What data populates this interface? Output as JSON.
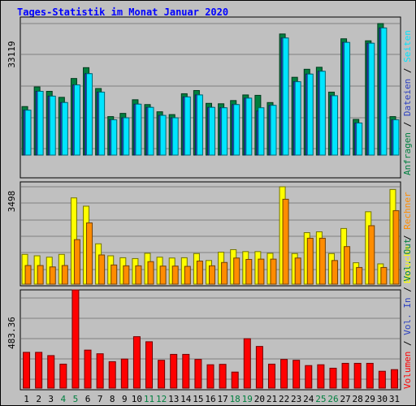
{
  "chart_data": {
    "type": "bar",
    "title": "Tages-Statistik im Monat Januar 2020",
    "categories": [
      "1",
      "2",
      "3",
      "4",
      "5",
      "6",
      "7",
      "8",
      "9",
      "10",
      "11",
      "12",
      "13",
      "14",
      "15",
      "16",
      "17",
      "18",
      "19",
      "20",
      "21",
      "22",
      "23",
      "24",
      "25",
      "26",
      "27",
      "28",
      "29",
      "30",
      "31"
    ],
    "weekend_days": [
      "4",
      "5",
      "11",
      "12",
      "18",
      "19",
      "25",
      "26"
    ],
    "panels": [
      {
        "ymax_label": "33119",
        "legend": [
          "Anfragen",
          "/",
          "Dateien",
          "/",
          "Seiten"
        ],
        "series": [
          {
            "name": "Anfragen",
            "color": "#007f3f",
            "values": [
              12100,
              17000,
              15900,
              14400,
              19100,
              21800,
              16600,
              9600,
              10400,
              13800,
              12600,
              10800,
              10100,
              15300,
              16100,
              12900,
              12800,
              13600,
              15000,
              14900,
              13100,
              30200,
              19400,
              21400,
              21900,
              15700,
              29000,
              8900,
              28500,
              32800,
              9600
            ]
          },
          {
            "name": "Dateien",
            "color": "#2b3fbf",
            "values": [
              11200,
              15900,
              14700,
              13100,
              17500,
              20300,
              15700,
              8800,
              9300,
              12700,
              11900,
              9900,
              9300,
              14500,
              15000,
              11900,
              11800,
              12600,
              14200,
              11000,
              12400,
              29200,
              18300,
              20200,
              20900,
              14800,
              28100,
              8000,
              27900,
              31700,
              8800
            ]
          },
          {
            "name": "Seiten",
            "color": "#00e5ff",
            "values": [
              11200,
              15900,
              14700,
              13100,
              17500,
              20300,
              15700,
              8800,
              9300,
              12700,
              11900,
              9900,
              9300,
              14500,
              15000,
              11900,
              11800,
              12600,
              14200,
              11800,
              12400,
              29200,
              18300,
              20200,
              20900,
              14800,
              28100,
              8000,
              27900,
              31700,
              8800
            ]
          }
        ]
      },
      {
        "ymax_label": "3498",
        "legend": [
          "Besuche",
          "/",
          "Rechner"
        ],
        "series": [
          {
            "name": "Besuche",
            "color": "#ffff00",
            "values": [
              1070,
              1020,
              970,
              1070,
              3098,
              2800,
              1450,
              1020,
              950,
              920,
              1110,
              970,
              940,
              950,
              1100,
              850,
              1150,
              1240,
              1170,
              1170,
              1110,
              3498,
              1100,
              1850,
              1880,
              1100,
              2000,
              770,
              2600,
              730,
              3400
            ]
          },
          {
            "name": "Rechner",
            "color": "#ff8c00",
            "values": [
              670,
              670,
              620,
              670,
              1600,
              2200,
              1050,
              690,
              660,
              660,
              810,
              650,
              650,
              640,
              830,
              660,
              780,
              940,
              890,
              900,
              900,
              3050,
              940,
              1650,
              1650,
              850,
              1350,
              600,
              2100,
              600,
              2640
            ]
          }
        ]
      },
      {
        "ymax_label": "483.36",
        "legend": [
          "Volumen",
          "/",
          "Vol. In",
          "/",
          "Vol. Out"
        ],
        "series": [
          {
            "name": "Volumen",
            "color": "#ff0000",
            "values": [
              176,
              176,
              160,
              118,
              483,
              187,
              169,
              130,
              143,
              253,
              228,
              137,
              166,
              166,
              141,
              115,
              117,
              79,
              243,
              205,
              118,
              141,
              137,
              111,
              115,
              98,
              122,
              122,
              122,
              83,
              91
            ]
          }
        ]
      }
    ]
  }
}
